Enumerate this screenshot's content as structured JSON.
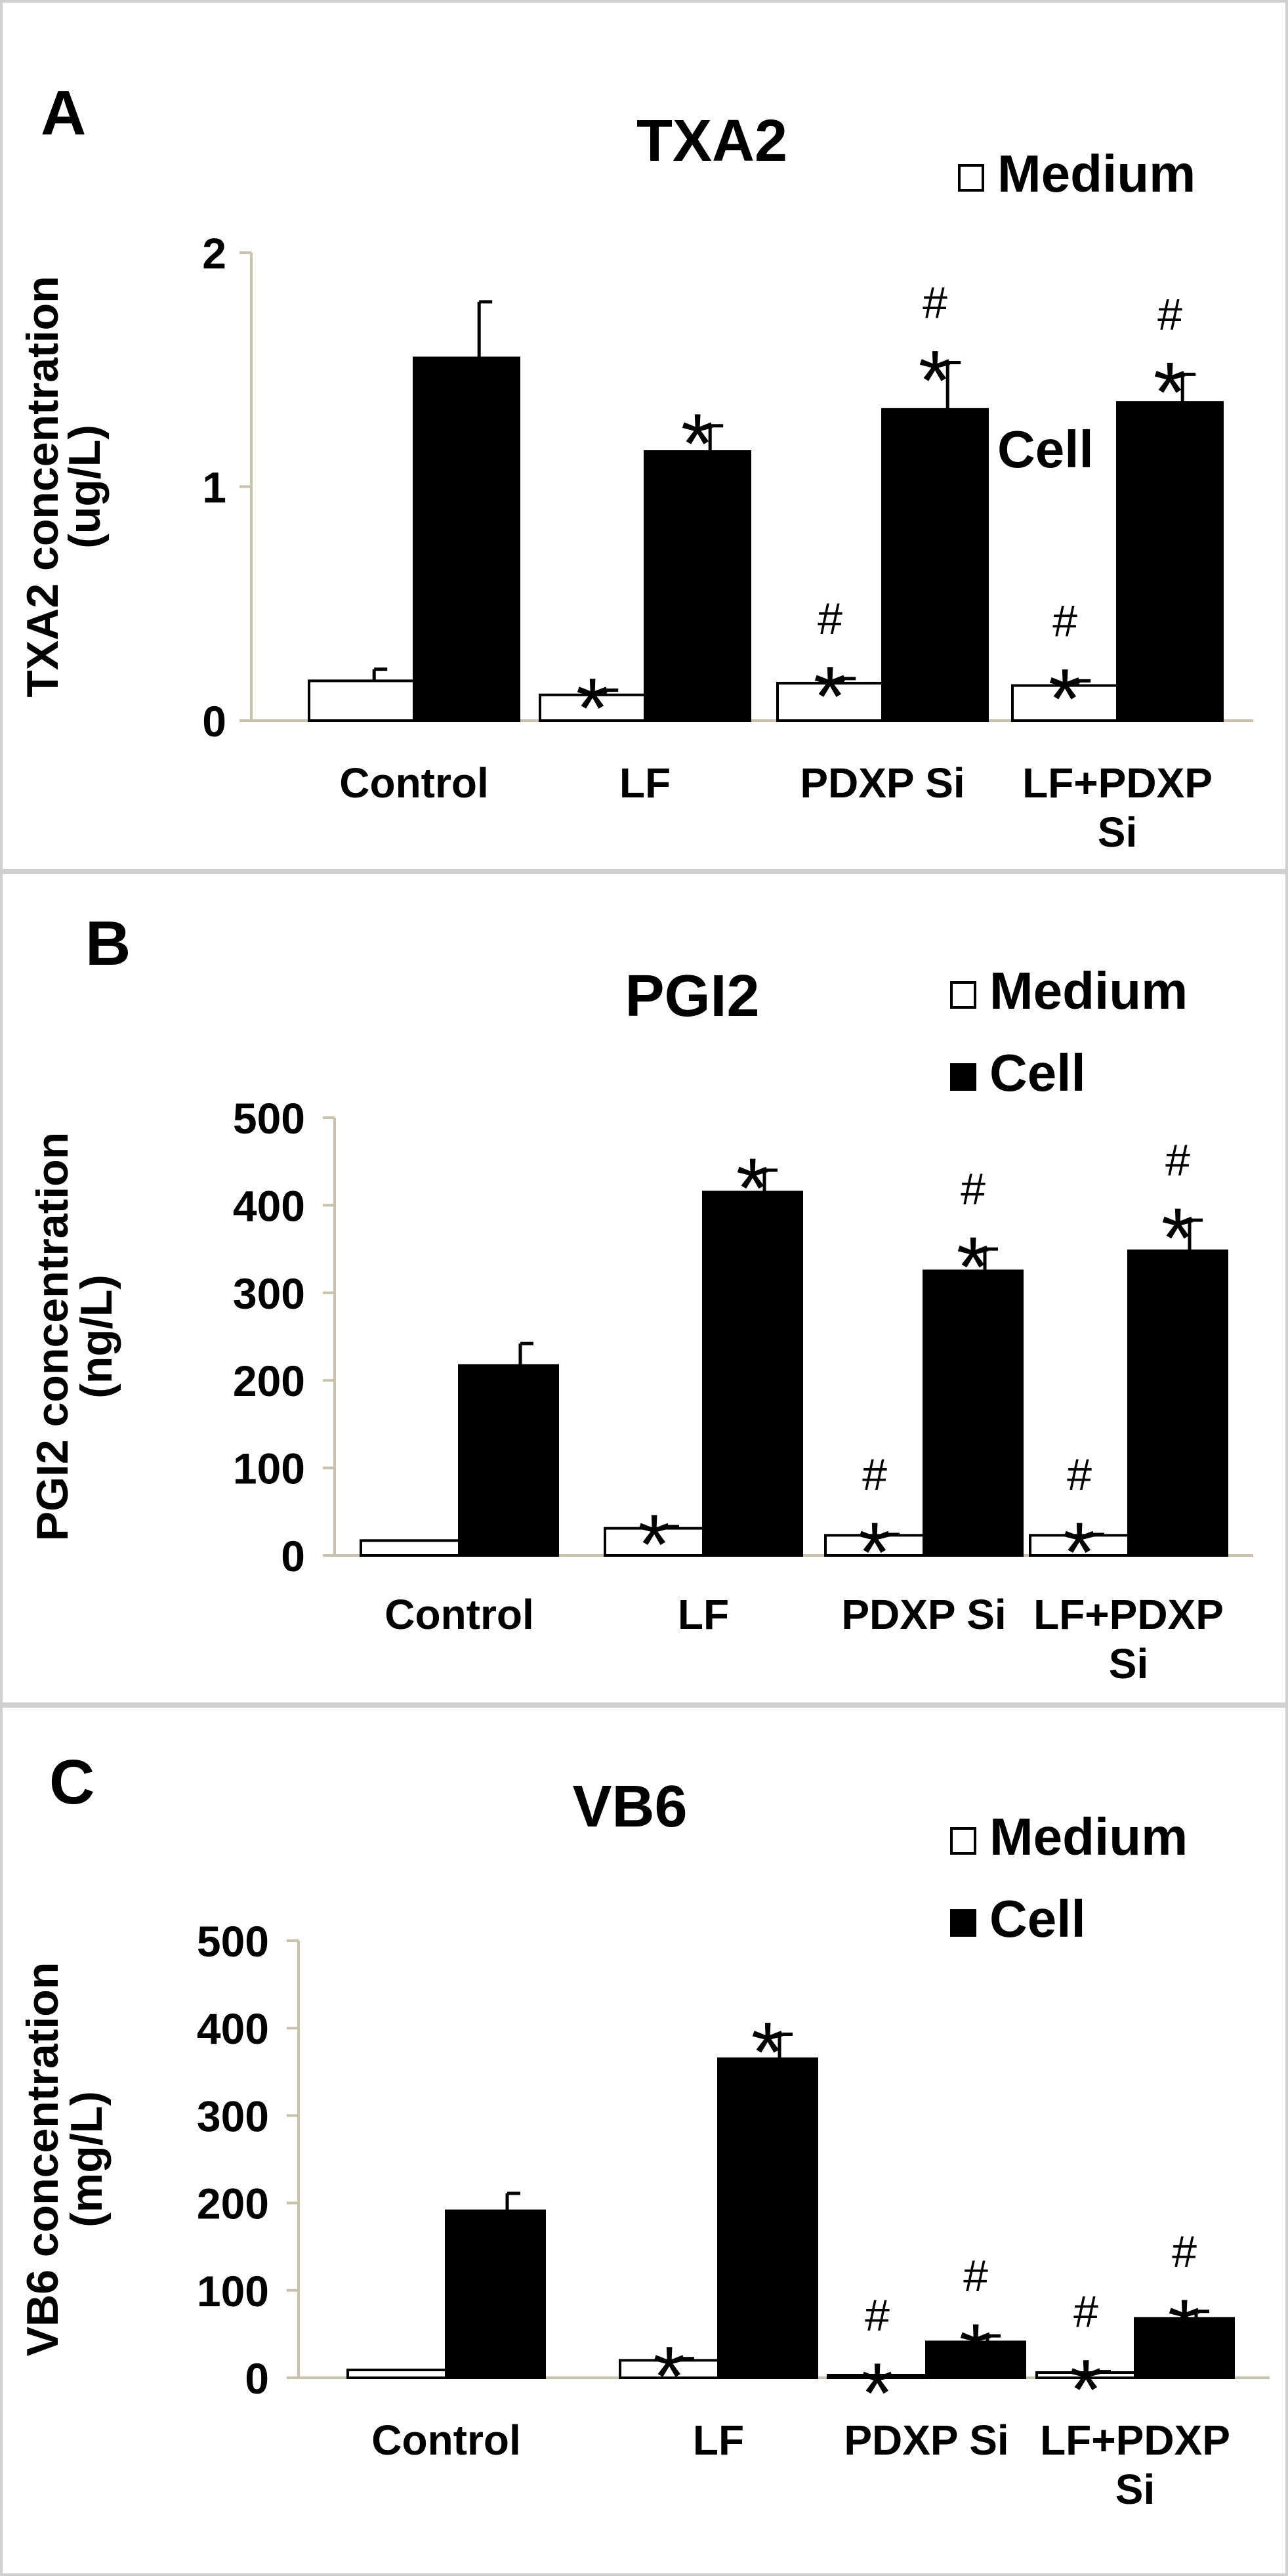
{
  "chart_data": [
    {
      "type": "bar",
      "panel": "A",
      "title": "TXA2",
      "ylabel": "TXA2 concentration",
      "ylabel_unit": "(ug/L)",
      "categories": [
        [
          "Control"
        ],
        [
          "LF"
        ],
        [
          "PDXP  Si"
        ],
        [
          "LF+PDXP",
          "Si"
        ]
      ],
      "ylim": [
        0,
        2
      ],
      "yticks": [
        0,
        1,
        2
      ],
      "series": [
        {
          "name": "Medium",
          "color": "#ffffff",
          "values": [
            0.17,
            0.11,
            0.16,
            0.15
          ],
          "errors": [
            0.05,
            0.02,
            0.02,
            0.02
          ],
          "annotations": [
            [],
            [
              "*"
            ],
            [
              "*",
              "#"
            ],
            [
              "*",
              "#"
            ]
          ]
        },
        {
          "name": "Cell",
          "color": "#000000",
          "values": [
            1.55,
            1.15,
            1.33,
            1.36
          ],
          "errors": [
            0.24,
            0.11,
            0.2,
            0.12
          ],
          "annotations": [
            [],
            [
              "*"
            ],
            [
              "*",
              "#"
            ],
            [
              "*",
              "#"
            ]
          ]
        }
      ],
      "legend": "top-right"
    },
    {
      "type": "bar",
      "panel": "B",
      "title": "PGI2",
      "ylabel": "PGI2 concentration",
      "ylabel_unit": "(ng/L)",
      "categories": [
        [
          "Control"
        ],
        [
          "LF"
        ],
        [
          "PDXP  Si"
        ],
        [
          "LF+PDXP",
          "Si"
        ]
      ],
      "ylim": [
        0,
        500
      ],
      "yticks": [
        0,
        100,
        200,
        300,
        400,
        500
      ],
      "series": [
        {
          "name": "Medium",
          "color": "#ffffff",
          "values": [
            17,
            31,
            23,
            23
          ],
          "errors": [
            0,
            2,
            1,
            1
          ],
          "annotations": [
            [],
            [
              "*"
            ],
            [
              "*",
              "#"
            ],
            [
              "*",
              "#"
            ]
          ]
        },
        {
          "name": "Cell",
          "color": "#000000",
          "values": [
            217,
            415,
            325,
            348
          ],
          "errors": [
            25,
            25,
            25,
            35
          ],
          "annotations": [
            [],
            [
              "*"
            ],
            [
              "*",
              "#"
            ],
            [
              "*",
              "#"
            ]
          ]
        }
      ],
      "legend": "top-right"
    },
    {
      "type": "bar",
      "panel": "C",
      "title": "VB6",
      "ylabel": "VB6 concentration",
      "ylabel_unit": "(mg/L)",
      "categories": [
        [
          "Control"
        ],
        [
          "LF"
        ],
        [
          "PDXP  Si"
        ],
        [
          "LF+PDXP",
          "Si"
        ]
      ],
      "ylim": [
        0,
        500
      ],
      "yticks": [
        0,
        100,
        200,
        300,
        400,
        500
      ],
      "series": [
        {
          "name": "Medium",
          "color": "#ffffff",
          "values": [
            9,
            20,
            3,
            6
          ],
          "errors": [
            0,
            2,
            0,
            1
          ],
          "annotations": [
            [],
            [
              "*"
            ],
            [
              "*",
              "#"
            ],
            [
              "*",
              "#"
            ]
          ]
        },
        {
          "name": "Cell",
          "color": "#000000",
          "values": [
            191,
            365,
            41,
            68
          ],
          "errors": [
            20,
            28,
            7,
            8
          ],
          "annotations": [
            [],
            [
              "*"
            ],
            [
              "*",
              "#"
            ],
            [
              "*",
              "#"
            ]
          ]
        }
      ],
      "legend": "top-right"
    }
  ]
}
